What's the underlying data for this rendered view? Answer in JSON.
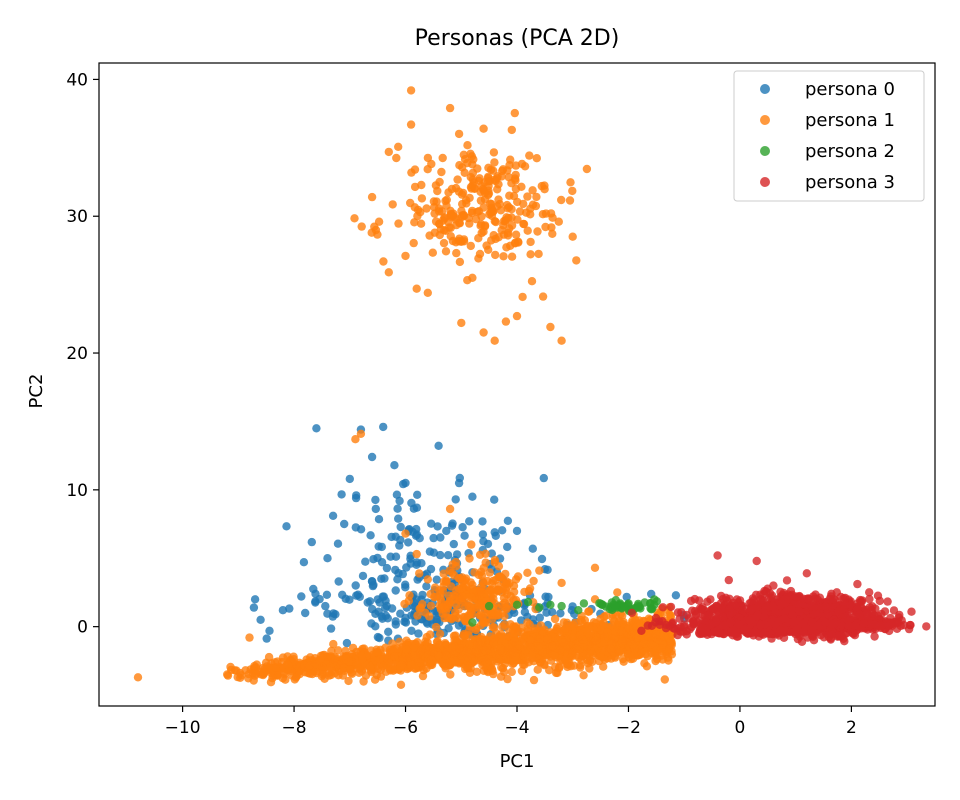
{
  "chart_data": {
    "type": "scatter",
    "title": "Personas (PCA 2D)",
    "xlabel": "PC1",
    "ylabel": "PC2",
    "xlim": [
      -11.5,
      3.5
    ],
    "ylim": [
      -5.8,
      41.2
    ],
    "xticks": [
      -10,
      -8,
      -6,
      -4,
      -2,
      0,
      2
    ],
    "xtick_labels": [
      "−10",
      "−8",
      "−6",
      "−4",
      "−2",
      "0",
      "2"
    ],
    "yticks": [
      0,
      10,
      20,
      30,
      40
    ],
    "ytick_labels": [
      "0",
      "10",
      "20",
      "30",
      "40"
    ],
    "grid": false,
    "legend": "top-right",
    "series": [
      {
        "name": "persona 0",
        "color": "#1f77b4",
        "clusters": [
          {
            "cx": -5.6,
            "cy": 4.5,
            "sx": 0.9,
            "sy": 3.2,
            "n": 180,
            "seed": 11
          },
          {
            "cx": -5.0,
            "cy": 1.0,
            "sx": 1.4,
            "sy": 1.0,
            "n": 160,
            "seed": 12
          }
        ],
        "points": [
          [
            -7.6,
            14.5
          ],
          [
            -6.4,
            14.6
          ],
          [
            -6.8,
            14.4
          ],
          [
            -6.6,
            12.4
          ],
          [
            -6.2,
            11.8
          ],
          [
            -7.0,
            10.8
          ],
          [
            -7.3,
            8.1
          ],
          [
            -7.1,
            7.5
          ],
          [
            -7.4,
            5.0
          ],
          [
            -8.7,
            2.0
          ],
          [
            -8.6,
            0.5
          ],
          [
            -8.2,
            1.2
          ],
          [
            -7.8,
            1.0
          ],
          [
            -7.2,
            3.3
          ],
          [
            -6.6,
            3.3
          ],
          [
            -4.8,
            9.5
          ],
          [
            -4.4,
            6.9
          ],
          [
            -4.0,
            7.0
          ],
          [
            -3.5,
            4.2
          ],
          [
            -1.0,
            0.6
          ],
          [
            -5.1,
            9.3
          ],
          [
            -6.0,
            10.5
          ]
        ]
      },
      {
        "name": "persona 1",
        "color": "#ff7f0e",
        "clusters": [
          {
            "cx": -4.6,
            "cy": 30.6,
            "sx": 0.75,
            "sy": 2.1,
            "n": 280,
            "seed": 21
          },
          {
            "cx": -4.8,
            "cy": 2.0,
            "sx": 0.45,
            "sy": 1.3,
            "n": 260,
            "seed": 23
          }
        ],
        "bands": [
          {
            "x0": -9.2,
            "x1": -1.2,
            "y0": -3.4,
            "y1": -0.6,
            "spread": 0.9,
            "n": 1800,
            "seed": 22
          }
        ],
        "points": [
          [
            -5.9,
            39.2
          ],
          [
            -5.2,
            37.9
          ],
          [
            -5.9,
            36.7
          ],
          [
            -6.3,
            34.7
          ],
          [
            -4.6,
            36.4
          ],
          [
            -6.6,
            31.4
          ],
          [
            -6.3,
            25.9
          ],
          [
            -6.0,
            27.1
          ],
          [
            -5.8,
            24.7
          ],
          [
            -5.6,
            24.4
          ],
          [
            -4.8,
            25.5
          ],
          [
            -3.9,
            24.1
          ],
          [
            -4.0,
            22.7
          ],
          [
            -4.2,
            22.3
          ],
          [
            -4.6,
            21.5
          ],
          [
            -4.4,
            20.9
          ],
          [
            -3.4,
            21.9
          ],
          [
            -3.2,
            20.9
          ],
          [
            -5.0,
            22.2
          ],
          [
            -3.0,
            28.5
          ],
          [
            -10.8,
            -3.7
          ],
          [
            -9.2,
            -3.5
          ],
          [
            -8.8,
            -0.8
          ],
          [
            -6.9,
            13.7
          ],
          [
            -6.8,
            14.1
          ],
          [
            -6.0,
            6.8
          ],
          [
            -5.2,
            8.6
          ],
          [
            -3.6,
            4.1
          ],
          [
            -3.2,
            3.2
          ],
          [
            -2.6,
            4.3
          ],
          [
            -2.6,
            2.0
          ],
          [
            -1.6,
            0.5
          ],
          [
            -1.1,
            -0.3
          ],
          [
            -2.2,
            2.5
          ],
          [
            -5.8,
            5.3
          ]
        ]
      },
      {
        "name": "persona 2",
        "color": "#2ca02c",
        "clusters": [
          {
            "cx": -2.1,
            "cy": 1.5,
            "sx": 0.35,
            "sy": 0.2,
            "n": 45,
            "seed": 31
          }
        ],
        "points": [
          [
            -4.5,
            1.5
          ],
          [
            -4.0,
            1.6
          ],
          [
            -3.8,
            1.8
          ],
          [
            -3.6,
            1.4
          ],
          [
            -3.2,
            1.5
          ],
          [
            -2.8,
            1.7
          ],
          [
            -4.8,
            0.3
          ],
          [
            -2.9,
            1.2
          ],
          [
            -3.4,
            1.6
          ]
        ]
      },
      {
        "name": "persona 3",
        "color": "#d62728",
        "blobs": [
          {
            "cx": 0.9,
            "cy": 0.9,
            "sx": 0.75,
            "sy": 0.7,
            "n": 1000,
            "seed": 41
          },
          {
            "cx": 0.6,
            "cy": 0.0,
            "sx": 0.9,
            "sy": 0.35,
            "n": 600,
            "seed": 42
          },
          {
            "cx": 2.2,
            "cy": 0.2,
            "sx": 0.4,
            "sy": 0.15,
            "n": 120,
            "seed": 43
          }
        ],
        "points": [
          [
            -0.4,
            5.2
          ],
          [
            0.3,
            4.8
          ],
          [
            1.2,
            3.9
          ],
          [
            -0.2,
            3.4
          ],
          [
            2.7,
            0.2
          ],
          [
            -1.0,
            0.0
          ],
          [
            -0.9,
            -0.2
          ],
          [
            0.6,
            3.0
          ]
        ]
      }
    ]
  }
}
